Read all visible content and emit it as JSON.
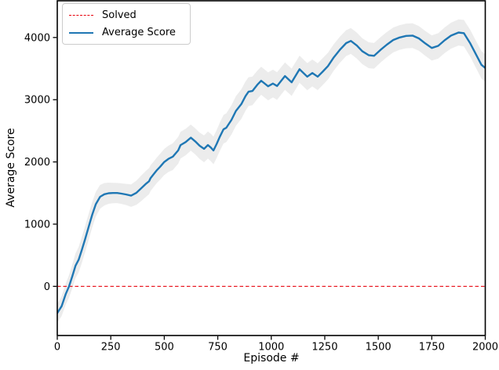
{
  "figure": {
    "background": "#ffffff"
  },
  "chart_data": {
    "type": "line",
    "title": "",
    "xlabel": "Episode #",
    "ylabel": "Average Score",
    "xlim": [
      0,
      2000
    ],
    "ylim": [
      -790,
      4590
    ],
    "xticks": [
      0,
      250,
      500,
      750,
      1000,
      1250,
      1500,
      1750,
      2000
    ],
    "yticks": [
      0,
      1000,
      2000,
      3000,
      4000
    ],
    "grid": false,
    "legend": {
      "position": "upper-left",
      "items": [
        {
          "label": "Solved",
          "color": "#e8000b",
          "style": "dashed"
        },
        {
          "label": "Average Score",
          "color": "#1f77b4",
          "style": "solid"
        }
      ]
    },
    "solved_line": {
      "y": 0,
      "color": "#e8000b",
      "style": "dashed"
    },
    "series": [
      {
        "name": "Average Score",
        "color": "#1f77b4",
        "band_color": "rgba(128,128,128,0.15)",
        "points_format": [
          "episode",
          "score",
          "band_halfwidth"
        ],
        "points": [
          [
            0,
            -430,
            150
          ],
          [
            20,
            -320,
            160
          ],
          [
            40,
            -120,
            170
          ],
          [
            55,
            0,
            180
          ],
          [
            70,
            160,
            190
          ],
          [
            85,
            330,
            200
          ],
          [
            100,
            430,
            205
          ],
          [
            115,
            590,
            210
          ],
          [
            130,
            760,
            210
          ],
          [
            147,
            960,
            210
          ],
          [
            163,
            1150,
            205
          ],
          [
            180,
            1320,
            200
          ],
          [
            200,
            1440,
            190
          ],
          [
            220,
            1480,
            180
          ],
          [
            240,
            1497,
            170
          ],
          [
            260,
            1500,
            165
          ],
          [
            280,
            1500,
            162
          ],
          [
            300,
            1490,
            165
          ],
          [
            320,
            1478,
            170
          ],
          [
            345,
            1458,
            180
          ],
          [
            370,
            1505,
            195
          ],
          [
            392,
            1575,
            205
          ],
          [
            415,
            1650,
            210
          ],
          [
            429,
            1690,
            210
          ],
          [
            436,
            1740,
            208
          ],
          [
            450,
            1800,
            205
          ],
          [
            466,
            1870,
            205
          ],
          [
            480,
            1920,
            208
          ],
          [
            500,
            2000,
            210
          ],
          [
            520,
            2050,
            212
          ],
          [
            540,
            2085,
            215
          ],
          [
            565,
            2185,
            215
          ],
          [
            576,
            2270,
            215
          ],
          [
            600,
            2320,
            212
          ],
          [
            624,
            2390,
            210
          ],
          [
            645,
            2330,
            210
          ],
          [
            665,
            2260,
            212
          ],
          [
            686,
            2210,
            215
          ],
          [
            704,
            2272,
            218
          ],
          [
            718,
            2230,
            220
          ],
          [
            730,
            2185,
            222
          ],
          [
            745,
            2290,
            225
          ],
          [
            759,
            2400,
            228
          ],
          [
            777,
            2525,
            230
          ],
          [
            790,
            2550,
            232
          ],
          [
            814,
            2675,
            235
          ],
          [
            835,
            2820,
            238
          ],
          [
            860,
            2930,
            238
          ],
          [
            880,
            3060,
            235
          ],
          [
            894,
            3130,
            232
          ],
          [
            912,
            3140,
            230
          ],
          [
            935,
            3240,
            228
          ],
          [
            953,
            3305,
            226
          ],
          [
            985,
            3215,
            225
          ],
          [
            1008,
            3260,
            222
          ],
          [
            1027,
            3220,
            222
          ],
          [
            1064,
            3380,
            220
          ],
          [
            1095,
            3280,
            220
          ],
          [
            1132,
            3490,
            218
          ],
          [
            1168,
            3370,
            218
          ],
          [
            1192,
            3430,
            216
          ],
          [
            1217,
            3370,
            216
          ],
          [
            1240,
            3450,
            216
          ],
          [
            1265,
            3540,
            215
          ],
          [
            1292,
            3680,
            212
          ],
          [
            1320,
            3800,
            210
          ],
          [
            1350,
            3910,
            208
          ],
          [
            1372,
            3945,
            208
          ],
          [
            1400,
            3870,
            208
          ],
          [
            1425,
            3780,
            208
          ],
          [
            1455,
            3715,
            208
          ],
          [
            1480,
            3705,
            206
          ],
          [
            1510,
            3800,
            204
          ],
          [
            1540,
            3885,
            202
          ],
          [
            1570,
            3960,
            200
          ],
          [
            1600,
            4000,
            198
          ],
          [
            1630,
            4025,
            198
          ],
          [
            1660,
            4030,
            198
          ],
          [
            1690,
            3985,
            198
          ],
          [
            1720,
            3905,
            200
          ],
          [
            1750,
            3832,
            202
          ],
          [
            1780,
            3865,
            204
          ],
          [
            1810,
            3955,
            206
          ],
          [
            1840,
            4030,
            208
          ],
          [
            1875,
            4080,
            210
          ],
          [
            1900,
            4070,
            212
          ],
          [
            1930,
            3905,
            215
          ],
          [
            1960,
            3705,
            218
          ],
          [
            1982,
            3560,
            220
          ],
          [
            2000,
            3510,
            220
          ]
        ]
      }
    ]
  }
}
